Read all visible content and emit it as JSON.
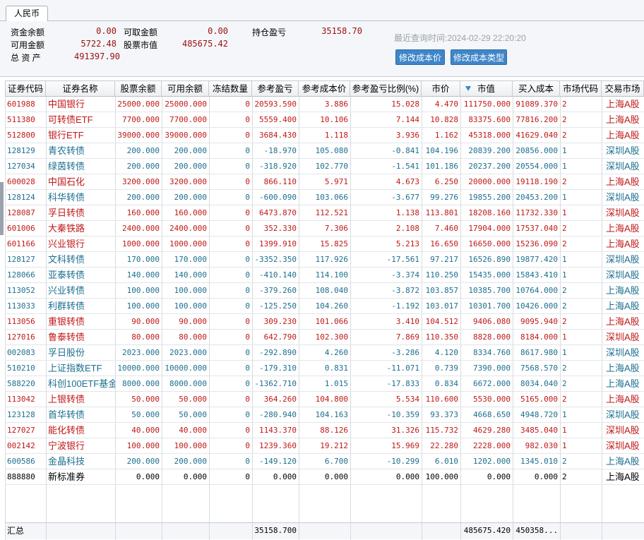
{
  "tab": "人民币",
  "summary": {
    "fund_balance": {
      "label": "资金余额",
      "value": "0.00"
    },
    "withdrawable": {
      "label": "可取金额",
      "value": "0.00"
    },
    "position_pnl": {
      "label": "持仓盈亏",
      "value": "35158.70"
    },
    "available": {
      "label": "可用金额",
      "value": "5722.48"
    },
    "stock_value": {
      "label": "股票市值",
      "value": "485675.42"
    },
    "total_assets": {
      "label": "总 资 产",
      "value": "491397.90"
    }
  },
  "query_time": "最近查询时间:2024-02-29 22:20:20",
  "buttons": [
    "修改成本价",
    "修改成本类型"
  ],
  "table": {
    "columns": [
      "证券代码",
      "证券名称",
      "股票余额",
      "可用余额",
      "冻结数量",
      "参考盈亏",
      "参考成本价",
      "参考盈亏比例(%)",
      "市价",
      "市值",
      "买入成本",
      "市场代码",
      "交易市场"
    ],
    "rows": [
      [
        "601988",
        "中国银行",
        "25000.000",
        "25000.000",
        "0",
        "20593.590",
        "3.886",
        "15.028",
        "4.470",
        "111750.000",
        "91089.370",
        "2",
        "上海A股"
      ],
      [
        "511380",
        "可转债ETF",
        "7700.000",
        "7700.000",
        "0",
        "5559.400",
        "10.106",
        "7.144",
        "10.828",
        "83375.600",
        "77816.200",
        "2",
        "上海A股"
      ],
      [
        "512800",
        "银行ETF",
        "39000.000",
        "39000.000",
        "0",
        "3684.430",
        "1.118",
        "3.936",
        "1.162",
        "45318.000",
        "41629.040",
        "2",
        "上海A股"
      ],
      [
        "128129",
        "青农转债",
        "200.000",
        "200.000",
        "0",
        "-18.970",
        "105.080",
        "-0.841",
        "104.196",
        "20839.200",
        "20856.000",
        "1",
        "深圳A股"
      ],
      [
        "127034",
        "绿茵转债",
        "200.000",
        "200.000",
        "0",
        "-318.920",
        "102.770",
        "-1.541",
        "101.186",
        "20237.200",
        "20554.000",
        "1",
        "深圳A股"
      ],
      [
        "600028",
        "中国石化",
        "3200.000",
        "3200.000",
        "0",
        "866.110",
        "5.971",
        "4.673",
        "6.250",
        "20000.000",
        "19118.190",
        "2",
        "上海A股"
      ],
      [
        "128124",
        "科华转债",
        "200.000",
        "200.000",
        "0",
        "-600.090",
        "103.066",
        "-3.677",
        "99.276",
        "19855.200",
        "20453.200",
        "1",
        "深圳A股"
      ],
      [
        "128087",
        "孚日转债",
        "160.000",
        "160.000",
        "0",
        "6473.870",
        "112.521",
        "1.138",
        "113.801",
        "18208.160",
        "11732.330",
        "1",
        "深圳A股"
      ],
      [
        "601006",
        "大秦铁路",
        "2400.000",
        "2400.000",
        "0",
        "352.330",
        "7.306",
        "2.108",
        "7.460",
        "17904.000",
        "17537.040",
        "2",
        "上海A股"
      ],
      [
        "601166",
        "兴业银行",
        "1000.000",
        "1000.000",
        "0",
        "1399.910",
        "15.825",
        "5.213",
        "16.650",
        "16650.000",
        "15236.090",
        "2",
        "上海A股"
      ],
      [
        "128127",
        "文科转债",
        "170.000",
        "170.000",
        "0",
        "-3352.350",
        "117.926",
        "-17.561",
        "97.217",
        "16526.890",
        "19877.420",
        "1",
        "深圳A股"
      ],
      [
        "128066",
        "亚泰转债",
        "140.000",
        "140.000",
        "0",
        "-410.140",
        "114.100",
        "-3.374",
        "110.250",
        "15435.000",
        "15843.410",
        "1",
        "深圳A股"
      ],
      [
        "113052",
        "兴业转债",
        "100.000",
        "100.000",
        "0",
        "-379.260",
        "108.040",
        "-3.872",
        "103.857",
        "10385.700",
        "10764.000",
        "2",
        "上海A股"
      ],
      [
        "113033",
        "利群转债",
        "100.000",
        "100.000",
        "0",
        "-125.250",
        "104.260",
        "-1.192",
        "103.017",
        "10301.700",
        "10426.000",
        "2",
        "上海A股"
      ],
      [
        "113056",
        "重银转债",
        "90.000",
        "90.000",
        "0",
        "309.230",
        "101.066",
        "3.410",
        "104.512",
        "9406.080",
        "9095.940",
        "2",
        "上海A股"
      ],
      [
        "127016",
        "鲁泰转债",
        "80.000",
        "80.000",
        "0",
        "642.790",
        "102.300",
        "7.869",
        "110.350",
        "8828.000",
        "8184.000",
        "1",
        "深圳A股"
      ],
      [
        "002083",
        "孚日股份",
        "2023.000",
        "2023.000",
        "0",
        "-292.890",
        "4.260",
        "-3.286",
        "4.120",
        "8334.760",
        "8617.980",
        "1",
        "深圳A股"
      ],
      [
        "510210",
        "上证指数ETF",
        "10000.000",
        "10000.000",
        "0",
        "-179.310",
        "0.831",
        "-11.071",
        "0.739",
        "7390.000",
        "7568.570",
        "2",
        "上海A股"
      ],
      [
        "588220",
        "科创100ETF基金",
        "8000.000",
        "8000.000",
        "0",
        "-1362.710",
        "1.015",
        "-17.833",
        "0.834",
        "6672.000",
        "8034.040",
        "2",
        "上海A股"
      ],
      [
        "113042",
        "上银转债",
        "50.000",
        "50.000",
        "0",
        "364.260",
        "104.800",
        "5.534",
        "110.600",
        "5530.000",
        "5165.000",
        "2",
        "上海A股"
      ],
      [
        "123128",
        "首华转债",
        "50.000",
        "50.000",
        "0",
        "-280.940",
        "104.163",
        "-10.359",
        "93.373",
        "4668.650",
        "4948.720",
        "1",
        "深圳A股"
      ],
      [
        "127027",
        "能化转债",
        "40.000",
        "40.000",
        "0",
        "1143.370",
        "88.126",
        "31.326",
        "115.732",
        "4629.280",
        "3485.040",
        "1",
        "深圳A股"
      ],
      [
        "002142",
        "宁波银行",
        "100.000",
        "100.000",
        "0",
        "1239.360",
        "19.212",
        "15.969",
        "22.280",
        "2228.000",
        "982.030",
        "1",
        "深圳A股"
      ],
      [
        "600586",
        "金晶科技",
        "200.000",
        "200.000",
        "0",
        "-149.120",
        "6.700",
        "-10.299",
        "6.010",
        "1202.000",
        "1345.010",
        "2",
        "上海A股"
      ],
      [
        "888880",
        "新标准券",
        "0.000",
        "0.000",
        "0",
        "0.000",
        "0.000",
        "0.000",
        "100.000",
        "0.000",
        "0.000",
        "2",
        "上海A股"
      ]
    ],
    "footer": {
      "label": "汇总",
      "pnl": "35158.700",
      "market_value": "485675.420",
      "buy_cost": "450358..."
    }
  }
}
